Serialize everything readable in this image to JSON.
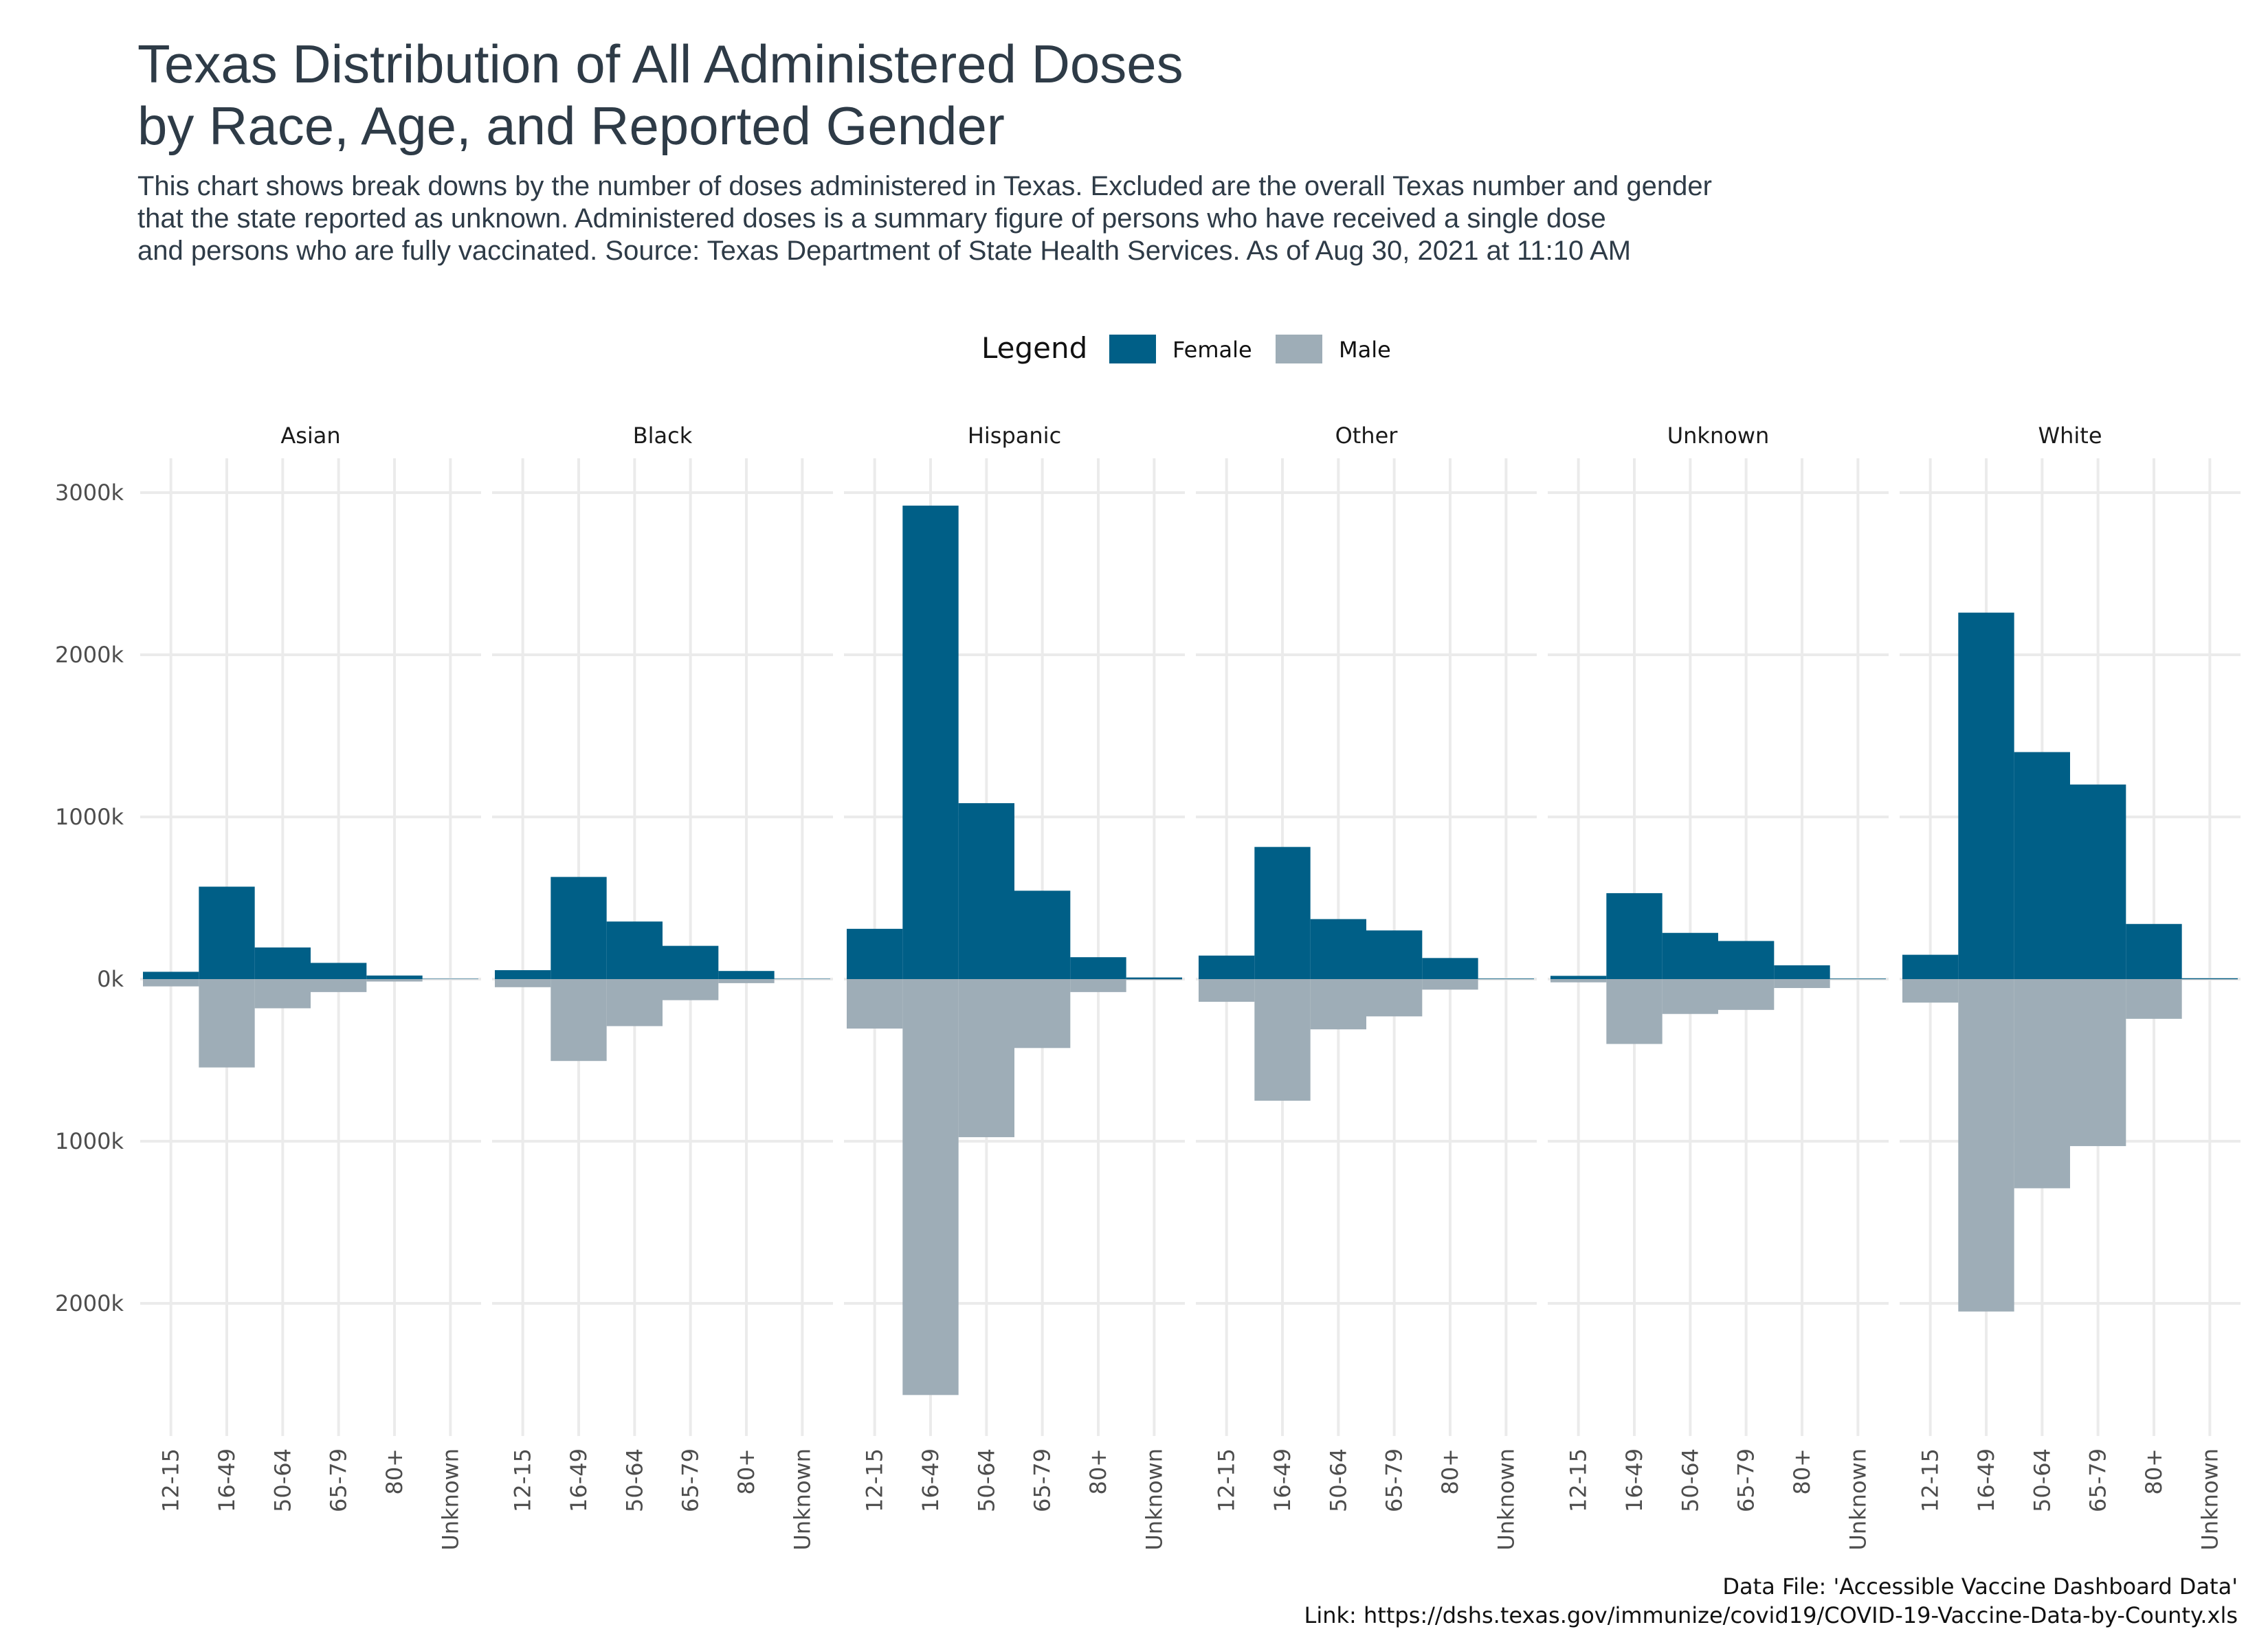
{
  "title": "Texas Distribution of All Administered Doses\nby Race, Age, and Reported Gender",
  "subtitle": "This chart shows break downs by the number of doses administered in Texas. Excluded are the overall Texas number and gender\nthat the state reported as unknown. Administered doses is a summary figure of persons who have received a single dose\nand persons who are fully vaccinated. Source: Texas Department of State Health Services. As of Aug 30, 2021 at 11:10 AM",
  "caption": {
    "line1": "Data File: 'Accessible Vaccine Dashboard Data'",
    "line2": "Link: https://dshs.texas.gov/immunize/covid19/COVID-19-Vaccine-Data-by-County.xls"
  },
  "colors": {
    "female": "#005f87",
    "male": "#9eadb7",
    "grid": "#ebebeb",
    "text": "#4d4d4d"
  },
  "chart_data": {
    "type": "bar",
    "layout_note": "faceted diverging bars; female above zero, male below zero",
    "legend": {
      "title": "Legend",
      "position": "top",
      "entries": [
        "Female",
        "Male"
      ]
    },
    "facets": [
      "Asian",
      "Black",
      "Hispanic",
      "Other",
      "Unknown",
      "White"
    ],
    "categories": [
      "12-15",
      "16-49",
      "50-64",
      "65-79",
      "80+",
      "Unknown"
    ],
    "y_tick_values": [
      3000,
      2000,
      1000,
      0,
      -1000,
      -2000
    ],
    "y_tick_labels": [
      "3000k",
      "2000k",
      "1000k",
      "0k",
      "1000k",
      "2000k"
    ],
    "ylim": [
      -2850,
      3150
    ],
    "grid": true,
    "series": [
      {
        "name": "Female",
        "values": {
          "Asian": [
            45,
            570,
            195,
            100,
            22,
            2
          ],
          "Black": [
            55,
            630,
            355,
            205,
            50,
            2
          ],
          "Hispanic": [
            310,
            2920,
            1085,
            545,
            135,
            10
          ],
          "Other": [
            145,
            815,
            370,
            300,
            130,
            3
          ],
          "Unknown": [
            20,
            530,
            285,
            235,
            85,
            3
          ],
          "White": [
            150,
            2260,
            1400,
            1200,
            340,
            5
          ]
        }
      },
      {
        "name": "Male",
        "values": {
          "Asian": [
            -45,
            -545,
            -180,
            -80,
            -15,
            -1
          ],
          "Black": [
            -50,
            -505,
            -290,
            -130,
            -25,
            -1
          ],
          "Hispanic": [
            -305,
            -2565,
            -975,
            -425,
            -80,
            -5
          ],
          "Other": [
            -140,
            -750,
            -310,
            -230,
            -65,
            -2
          ],
          "Unknown": [
            -20,
            -400,
            -215,
            -190,
            -55,
            -2
          ],
          "White": [
            -145,
            -2050,
            -1290,
            -1030,
            -245,
            -3
          ]
        }
      }
    ]
  }
}
